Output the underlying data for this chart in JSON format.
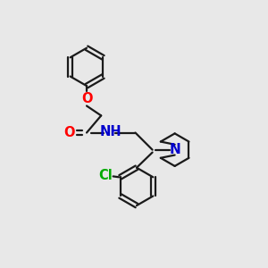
{
  "bg_color": "#e8e8e8",
  "line_color": "#1a1a1a",
  "O_color": "#ff0000",
  "N_color": "#0000cc",
  "Cl_color": "#00aa00",
  "line_width": 1.6,
  "font_size": 10.5,
  "fig_w": 3.0,
  "fig_h": 3.0,
  "dpi": 100,
  "xlim": [
    0,
    10
  ],
  "ylim": [
    0,
    10
  ]
}
